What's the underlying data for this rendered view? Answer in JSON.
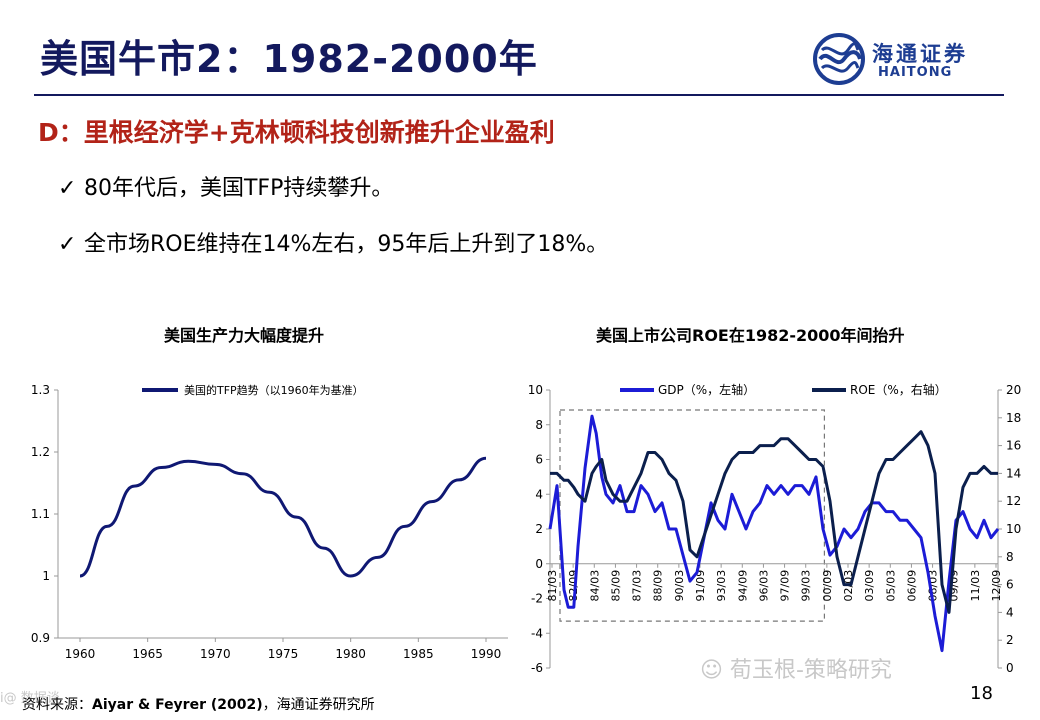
{
  "header": {
    "title": "美国牛市2：1982-2000年",
    "logo_cn": "海通证券",
    "logo_en": "HAITONG",
    "brand_color": "#13195e"
  },
  "section": {
    "heading": "D：里根经济学+克林顿科技创新推升企业盈利",
    "heading_color": "#b22318",
    "bullets": [
      "80年代后，美国TFP持续攀升。",
      "全市场ROE维持在14%左右，95年后上升到了18%。"
    ]
  },
  "chart_data": [
    {
      "type": "line",
      "title": "美国生产力大幅度提升",
      "legend": "美国的TFP趋势（以1960年为基准）",
      "legend_placement": "top",
      "x": [
        1960,
        1962,
        1964,
        1966,
        1968,
        1970,
        1972,
        1974,
        1976,
        1978,
        1980,
        1982,
        1984,
        1986,
        1988,
        1990
      ],
      "series": [
        {
          "name": "美国的TFP趋势（以1960年为基准）",
          "color": "#0f1873",
          "values": [
            1.0,
            1.08,
            1.145,
            1.175,
            1.185,
            1.18,
            1.165,
            1.135,
            1.095,
            1.045,
            1.0,
            1.03,
            1.08,
            1.12,
            1.155,
            1.19
          ]
        }
      ],
      "x_ticks": [
        "1960",
        "1965",
        "1970",
        "1975",
        "1980",
        "1985",
        "1990"
      ],
      "y_ticks": [
        "0.9",
        "1",
        "1.1",
        "1.2",
        "1.3"
      ],
      "ylim": [
        0.9,
        1.3
      ],
      "xlim": [
        1960,
        1990
      ],
      "grid": false
    },
    {
      "type": "line",
      "title": "美国上市公司ROE在1982-2000年间抬升",
      "legend_placement": "top",
      "x_ticks": [
        "81/03",
        "82/09",
        "84/03",
        "85/09",
        "87/03",
        "88/09",
        "90/03",
        "91/09",
        "93/03",
        "94/09",
        "96/03",
        "97/09",
        "99/03",
        "00/09",
        "02/03",
        "03/09",
        "05/03",
        "06/09",
        "08/03",
        "09/09",
        "11/03",
        "12/09"
      ],
      "x": [
        1981.0,
        1981.5,
        1982.0,
        1982.3,
        1982.7,
        1983.0,
        1983.5,
        1984.0,
        1984.3,
        1984.7,
        1985.0,
        1985.5,
        1986.0,
        1986.5,
        1987.0,
        1987.5,
        1988.0,
        1988.5,
        1989.0,
        1989.5,
        1990.0,
        1990.5,
        1991.0,
        1991.5,
        1992.0,
        1992.5,
        1993.0,
        1993.5,
        1994.0,
        1994.5,
        1995.0,
        1995.5,
        1996.0,
        1996.5,
        1997.0,
        1997.5,
        1998.0,
        1998.5,
        1999.0,
        1999.5,
        2000.0,
        2000.5,
        2001.0,
        2001.5,
        2002.0,
        2002.5,
        2003.0,
        2003.5,
        2004.0,
        2004.5,
        2005.0,
        2005.5,
        2006.0,
        2006.5,
        2007.0,
        2007.5,
        2008.0,
        2008.5,
        2009.0,
        2009.5,
        2010.0,
        2010.5,
        2011.0,
        2011.5,
        2012.0,
        2012.5,
        2013.0
      ],
      "series": [
        {
          "name": "GDP（%，左轴）",
          "axis": "left",
          "color": "#1c1cd6",
          "values": [
            2,
            4.5,
            -1.5,
            -2.5,
            -2.5,
            1,
            5.5,
            8.5,
            7.5,
            5,
            4,
            3.5,
            4.5,
            3,
            3,
            4.5,
            4,
            3,
            3.5,
            2,
            2,
            0.5,
            -1,
            -0.5,
            1.5,
            3.5,
            2.5,
            2,
            4,
            3,
            2,
            3,
            3.5,
            4.5,
            4,
            4.5,
            4,
            4.5,
            4.5,
            4,
            5,
            2,
            0.5,
            1,
            2,
            1.5,
            2,
            3,
            3.5,
            3.5,
            3,
            3,
            2.5,
            2.5,
            2,
            1.5,
            -0.5,
            -3,
            -5,
            -1,
            2.5,
            3,
            2,
            1.5,
            2.5,
            1.5,
            2
          ]
        },
        {
          "name": "ROE（%，右轴）",
          "axis": "right",
          "color": "#0b1f4d",
          "values": [
            14,
            14,
            13.5,
            13.5,
            13,
            12.5,
            12,
            14,
            14.5,
            15,
            13.5,
            12.5,
            12,
            12,
            13,
            14,
            15.5,
            15.5,
            15,
            14,
            13.5,
            12,
            8.5,
            8,
            9.5,
            11,
            12.5,
            14,
            15,
            15.5,
            15.5,
            15.5,
            16,
            16,
            16,
            16.5,
            16.5,
            16,
            15.5,
            15,
            15,
            14.5,
            12,
            8,
            6,
            6,
            8,
            10,
            12,
            14,
            15,
            15,
            15.5,
            16,
            16.5,
            17,
            16,
            14,
            6,
            4,
            10,
            13,
            14,
            14,
            14.5,
            14,
            14
          ]
        }
      ],
      "y_left_ticks": [
        "-6",
        "-4",
        "-2",
        "0",
        "2",
        "4",
        "6",
        "8",
        "10"
      ],
      "y_right_ticks": [
        "0",
        "2",
        "4",
        "6",
        "8",
        "10",
        "12",
        "14",
        "16",
        "18",
        "20"
      ],
      "ylim_left": [
        -6,
        10
      ],
      "ylim_right": [
        0,
        20
      ],
      "highlight_range": [
        1982.0,
        2000.6
      ],
      "grid": false
    }
  ],
  "footer": {
    "source_label": "资料来源：",
    "source_bold": "Aiyar & Feyrer (2002)",
    "source_rest": "，海通证券研究所",
    "page_number": "18",
    "watermark_right": "荀玉根-策略研究",
    "watermark_left": "i@ 数据谈"
  }
}
